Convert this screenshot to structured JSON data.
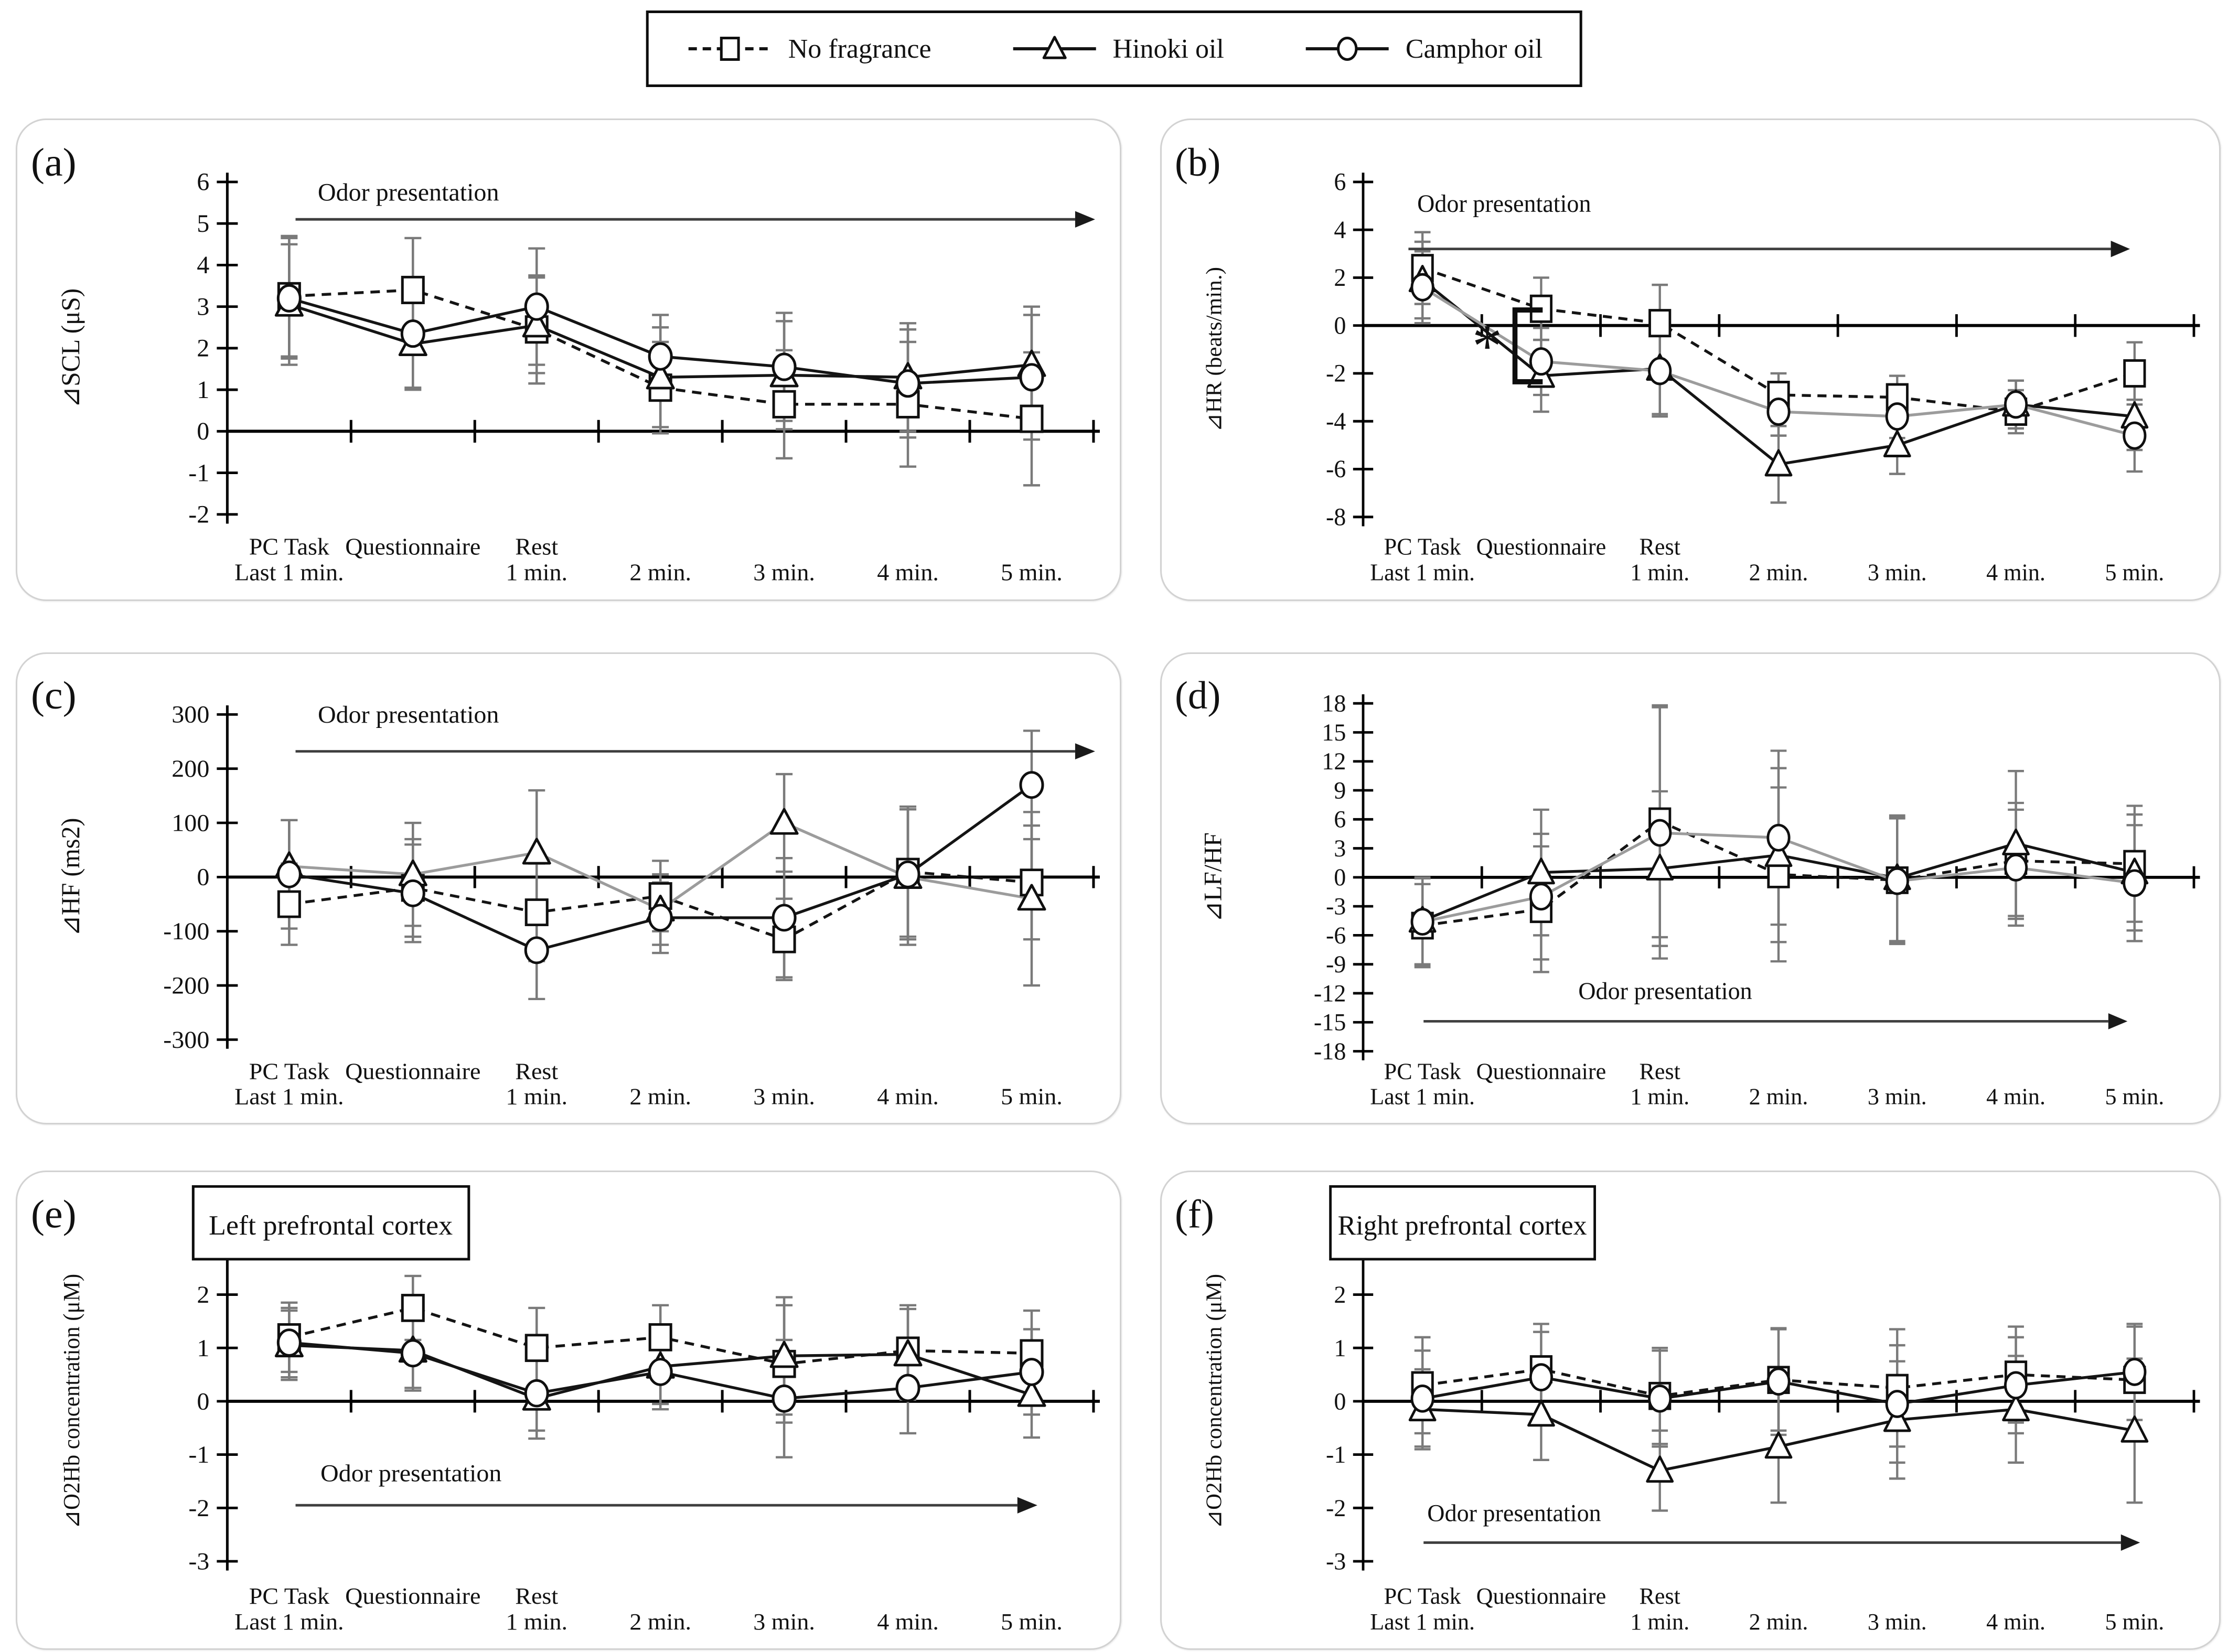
{
  "legend": {
    "items": [
      {
        "label": "No fragrance",
        "marker": "square",
        "line": "dashed"
      },
      {
        "label": "Hinoki oil",
        "marker": "triangle",
        "line": "solid"
      },
      {
        "label": "Camphor oil",
        "marker": "circle",
        "line": "solid"
      }
    ]
  },
  "categories": [
    {
      "line1": "PC Task",
      "line2": "Last 1 min."
    },
    {
      "line1": "Questionnaire",
      "line2": ""
    },
    {
      "line1": "Rest",
      "line2": "1 min."
    },
    {
      "line1": "",
      "line2": "2 min."
    },
    {
      "line1": "",
      "line2": "3 min."
    },
    {
      "line1": "",
      "line2": "4 min."
    },
    {
      "line1": "",
      "line2": "5 min."
    }
  ],
  "colors": {
    "black": "#141414",
    "gray": "#9c9c9c",
    "error_bar": "#7a7a7a",
    "marker_stroke": "#0f0f0f",
    "odor_line": "#3f3f3f",
    "panel_border": "#d2d2d2"
  },
  "chart_data": [
    {
      "id": "a",
      "letter": "(a)",
      "type": "line",
      "ylabel": "⊿SCL (μS)",
      "ylim": [
        -2,
        6
      ],
      "ystep": 1,
      "grid": false,
      "legend_position": "top-center-page",
      "odor": {
        "label": "Odor presentation",
        "position": "top",
        "text_x": 745,
        "text_val": 5.55,
        "line_val": 5.1,
        "line_x1": 530,
        "line_x2": 2015
      },
      "series": [
        {
          "name": "No fragrance",
          "marker": "square",
          "dashed": true,
          "line_color": "#141414",
          "values": [
            3.25,
            3.4,
            2.45,
            1.05,
            0.65,
            0.65,
            0.3
          ],
          "errors": [
            1.45,
            1.25,
            1.3,
            1.1,
            1.3,
            1.5,
            1.6
          ]
        },
        {
          "name": "Hinoki oil",
          "marker": "triangle",
          "dashed": false,
          "line_color": "#141414",
          "values": [
            3.05,
            2.1,
            2.55,
            1.3,
            1.35,
            1.3,
            1.6
          ],
          "errors": [
            1.45,
            1.1,
            1.15,
            1.2,
            1.3,
            1.3,
            1.4
          ]
        },
        {
          "name": "Camphor oil",
          "marker": "circle",
          "dashed": false,
          "line_color": "#141414",
          "values": [
            3.2,
            2.35,
            3.0,
            1.8,
            1.55,
            1.15,
            1.3
          ],
          "errors": [
            1.45,
            1.3,
            1.4,
            1.0,
            1.3,
            1.3,
            1.5
          ]
        }
      ]
    },
    {
      "id": "b",
      "letter": "(b)",
      "type": "line",
      "ylabel": "⊿HR (beats/min.)",
      "ylim": [
        -8,
        6
      ],
      "ystep": 2,
      "grid": false,
      "odor": {
        "label": "Odor presentation",
        "position": "top",
        "text_x": 680,
        "text_val": 4.75,
        "line_val": 3.2,
        "line_x1": 490,
        "line_x2": 1885
      },
      "sig": {
        "label": "*",
        "cat_index": 1,
        "top_val": 0.65,
        "bottom_val": -2.35
      },
      "series": [
        {
          "name": "No fragrance",
          "marker": "square",
          "dashed": true,
          "line_color": "#141414",
          "values": [
            2.4,
            0.7,
            0.1,
            -2.9,
            -3.0,
            -3.6,
            -2.0
          ],
          "errors": [
            1.5,
            1.3,
            1.6,
            0.9,
            0.9,
            0.9,
            1.3
          ]
        },
        {
          "name": "Hinoki oil",
          "marker": "triangle",
          "dashed": false,
          "line_color": "#141414",
          "values": [
            1.9,
            -2.1,
            -1.8,
            -5.8,
            -5.0,
            -3.3,
            -3.8
          ],
          "errors": [
            1.6,
            1.5,
            1.9,
            1.6,
            1.2,
            1.0,
            1.4
          ]
        },
        {
          "name": "Camphor oil",
          "marker": "circle",
          "dashed": false,
          "line_color": "#9c9c9c",
          "values": [
            1.6,
            -1.5,
            -1.9,
            -3.6,
            -3.8,
            -3.3,
            -4.6
          ],
          "errors": [
            1.5,
            1.4,
            1.9,
            1.0,
            0.9,
            1.0,
            1.5
          ]
        }
      ]
    },
    {
      "id": "c",
      "letter": "(c)",
      "type": "line",
      "ylabel": "⊿HF (ms2)",
      "ylim": [
        -300,
        300
      ],
      "ystep": 100,
      "grid": false,
      "odor": {
        "label": "Odor presentation",
        "position": "top",
        "text_x": 745,
        "text_val": 285,
        "line_val": 232,
        "line_x1": 530,
        "line_x2": 2015
      },
      "series": [
        {
          "name": "No fragrance",
          "marker": "square",
          "dashed": true,
          "line_color": "#141414",
          "values": [
            -50,
            -20,
            -65,
            -35,
            -115,
            10,
            -10
          ],
          "errors": [
            75,
            90,
            90,
            65,
            75,
            120,
            105
          ]
        },
        {
          "name": "Hinoki oil",
          "marker": "triangle",
          "dashed": false,
          "line_color": "#9c9c9c",
          "values": [
            20,
            5,
            45,
            -60,
            100,
            0,
            -40
          ],
          "errors": [
            85,
            95,
            115,
            65,
            90,
            125,
            160
          ]
        },
        {
          "name": "Camphor oil",
          "marker": "circle",
          "dashed": false,
          "line_color": "#141414",
          "values": [
            5,
            -30,
            -135,
            -75,
            -75,
            5,
            170
          ],
          "errors": [
            100,
            90,
            90,
            65,
            110,
            120,
            100
          ]
        }
      ]
    },
    {
      "id": "d",
      "letter": "(d)",
      "type": "line",
      "ylabel": "⊿LF/HF",
      "ylim": [
        -18,
        18
      ],
      "ystep": 3,
      "grid": false,
      "odor": {
        "label": "Odor presentation",
        "position": "bottom",
        "text_x": 1000,
        "text_val": -12.6,
        "line_val": -14.9,
        "line_x1": 520,
        "line_x2": 1880
      },
      "series": [
        {
          "name": "No fragrance",
          "marker": "square",
          "dashed": true,
          "line_color": "#141414",
          "values": [
            -5.0,
            -3.3,
            5.8,
            0.3,
            -0.3,
            1.7,
            1.4
          ],
          "errors": [
            4.3,
            6.5,
            12.0,
            9.0,
            6.5,
            6.0,
            6.0
          ]
        },
        {
          "name": "Hinoki oil",
          "marker": "triangle",
          "dashed": false,
          "line_color": "#141414",
          "values": [
            -4.5,
            0.5,
            0.9,
            2.3,
            -0.1,
            3.5,
            0.5
          ],
          "errors": [
            4.5,
            6.5,
            8.0,
            9.0,
            6.5,
            7.5,
            6.0
          ]
        },
        {
          "name": "Camphor oil",
          "marker": "circle",
          "dashed": false,
          "line_color": "#9c9c9c",
          "values": [
            -4.6,
            -2.0,
            4.6,
            4.1,
            -0.4,
            1.0,
            -0.6
          ],
          "errors": [
            4.5,
            6.5,
            13.0,
            9.0,
            6.5,
            6.0,
            6.0
          ]
        }
      ]
    },
    {
      "id": "e",
      "letter": "(e)",
      "type": "line",
      "ylabel": "⊿O2Hb concentration (μM)",
      "title_box": "Left prefrontal cortex",
      "ylim": [
        -3,
        3
      ],
      "ystep": 1,
      "grid": false,
      "odor": {
        "label": "Odor presentation",
        "position": "bottom",
        "text_x": 750,
        "text_val": -1.5,
        "line_val": -1.95,
        "line_x1": 530,
        "line_x2": 1905
      },
      "series": [
        {
          "name": "No fragrance",
          "marker": "square",
          "dashed": true,
          "line_color": "#141414",
          "values": [
            1.2,
            1.75,
            1.0,
            1.2,
            0.7,
            0.95,
            0.9
          ],
          "errors": [
            0.65,
            0.6,
            0.75,
            0.6,
            1.1,
            0.85,
            0.8
          ]
        },
        {
          "name": "Hinoki oil",
          "marker": "triangle",
          "dashed": false,
          "line_color": "#141414",
          "values": [
            1.05,
            0.95,
            0.05,
            0.65,
            0.85,
            0.88,
            0.12
          ],
          "errors": [
            0.65,
            0.7,
            0.75,
            0.7,
            1.1,
            0.85,
            0.8
          ]
        },
        {
          "name": "Camphor oil",
          "marker": "circle",
          "dashed": false,
          "line_color": "#141414",
          "values": [
            1.1,
            0.9,
            0.15,
            0.55,
            0.05,
            0.25,
            0.55
          ],
          "errors": [
            0.65,
            0.7,
            0.7,
            0.7,
            1.1,
            0.85,
            0.8
          ]
        }
      ]
    },
    {
      "id": "f",
      "letter": "(f)",
      "type": "line",
      "ylabel": "⊿O2Hb concentration (μM)",
      "title_box": "Right prefrontal cortex",
      "ylim": [
        -3,
        3
      ],
      "ystep": 1,
      "grid": false,
      "odor": {
        "label": "Odor presentation",
        "position": "bottom",
        "text_x": 700,
        "text_val": -2.25,
        "line_val": -2.65,
        "line_x1": 520,
        "line_x2": 1905
      },
      "series": [
        {
          "name": "No fragrance",
          "marker": "square",
          "dashed": true,
          "line_color": "#141414",
          "values": [
            0.3,
            0.6,
            0.1,
            0.4,
            0.25,
            0.5,
            0.4
          ],
          "errors": [
            0.9,
            0.85,
            0.9,
            0.95,
            1.1,
            0.9,
            1.0
          ]
        },
        {
          "name": "Hinoki oil",
          "marker": "triangle",
          "dashed": false,
          "line_color": "#141414",
          "values": [
            -0.15,
            -0.25,
            -1.3,
            -0.85,
            -0.35,
            -0.15,
            -0.55
          ],
          "errors": [
            0.75,
            0.85,
            0.75,
            1.05,
            1.1,
            1.0,
            1.35
          ]
        },
        {
          "name": "Camphor oil",
          "marker": "circle",
          "dashed": false,
          "line_color": "#141414",
          "values": [
            0.05,
            0.45,
            0.05,
            0.37,
            -0.05,
            0.3,
            0.55
          ],
          "errors": [
            0.9,
            0.85,
            0.9,
            1.0,
            1.1,
            0.9,
            0.9
          ]
        }
      ]
    }
  ]
}
